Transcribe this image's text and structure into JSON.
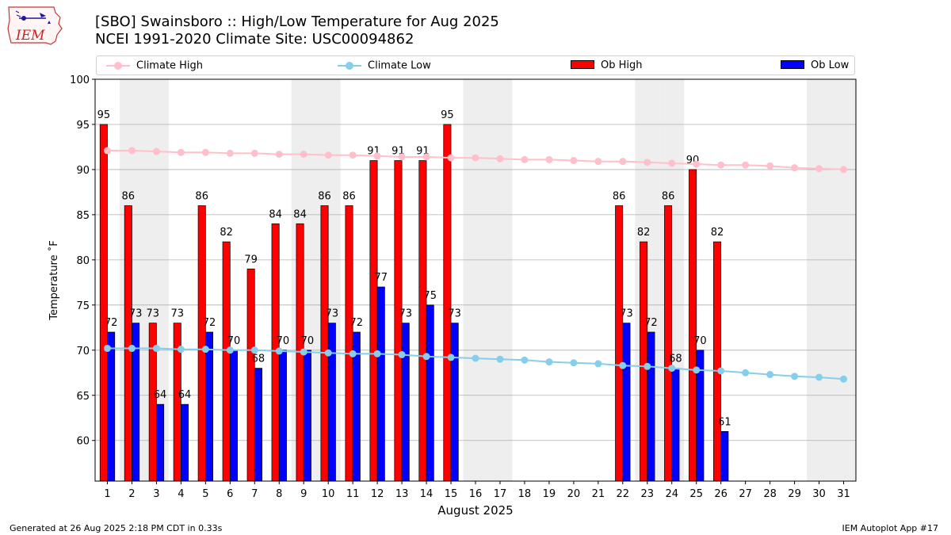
{
  "title_lines": [
    "[SBO] Swainsboro :: High/Low Temperature for Aug 2025",
    "NCEI 1991-2020 Climate Site: USC00094862"
  ],
  "logo_text": "IEM",
  "footer": {
    "left": "Generated at 26 Aug 2025 2:18 PM CDT in 0.33s",
    "right": "IEM Autoplot App #17"
  },
  "colors": {
    "climate_high": "#ffc0cb",
    "climate_low": "#87ceeb",
    "ob_high": "#ff0000",
    "ob_low": "#0000ff",
    "weekend_shade": "#eeeeee",
    "grid": "#b0b0b0"
  },
  "chart_data": {
    "type": "bar",
    "title": "[SBO] Swainsboro :: High/Low Temperature for Aug 2025",
    "subtitle": "NCEI 1991-2020 Climate Site: USC00094862",
    "xlabel": "August 2025",
    "ylabel": "Temperature ˚F",
    "ylim": [
      55.5,
      100
    ],
    "yticks": [
      60,
      65,
      70,
      75,
      80,
      85,
      90,
      95,
      100
    ],
    "grid": true,
    "legend_position": "top",
    "categories": [
      "1",
      "2",
      "3",
      "4",
      "5",
      "6",
      "7",
      "8",
      "9",
      "10",
      "11",
      "12",
      "13",
      "14",
      "15",
      "16",
      "17",
      "18",
      "19",
      "20",
      "21",
      "22",
      "23",
      "24",
      "25",
      "26",
      "27",
      "28",
      "29",
      "30",
      "31"
    ],
    "weekend_days": [
      2,
      3,
      9,
      10,
      16,
      17,
      23,
      24,
      30,
      31
    ],
    "series": [
      {
        "name": "Climate High",
        "kind": "line",
        "values": [
          92.1,
          92.1,
          92.0,
          91.9,
          91.9,
          91.8,
          91.8,
          91.7,
          91.7,
          91.6,
          91.6,
          91.5,
          91.4,
          91.4,
          91.3,
          91.3,
          91.2,
          91.1,
          91.1,
          91.0,
          90.9,
          90.9,
          90.8,
          90.7,
          90.6,
          90.5,
          90.5,
          90.4,
          90.2,
          90.1,
          90.0
        ]
      },
      {
        "name": "Climate Low",
        "kind": "line",
        "values": [
          70.2,
          70.2,
          70.2,
          70.1,
          70.1,
          70.0,
          70.0,
          69.9,
          69.8,
          69.7,
          69.6,
          69.6,
          69.5,
          69.3,
          69.2,
          69.1,
          69.0,
          68.9,
          68.7,
          68.6,
          68.5,
          68.3,
          68.2,
          68.0,
          67.8,
          67.7,
          67.5,
          67.3,
          67.1,
          67.0,
          66.8
        ]
      },
      {
        "name": "Ob High",
        "kind": "bar",
        "values": [
          95,
          86,
          73,
          73,
          86,
          82,
          79,
          84,
          84,
          86,
          86,
          91,
          91,
          91,
          95,
          null,
          null,
          null,
          null,
          null,
          null,
          86,
          82,
          86,
          90,
          82,
          null,
          null,
          null,
          null,
          null
        ]
      },
      {
        "name": "Ob Low",
        "kind": "bar",
        "values": [
          72,
          73,
          64,
          64,
          72,
          70,
          68,
          70,
          70,
          73,
          72,
          77,
          73,
          75,
          73,
          null,
          null,
          null,
          null,
          null,
          null,
          73,
          72,
          68,
          70,
          61,
          null,
          null,
          null,
          null,
          null
        ]
      }
    ]
  }
}
